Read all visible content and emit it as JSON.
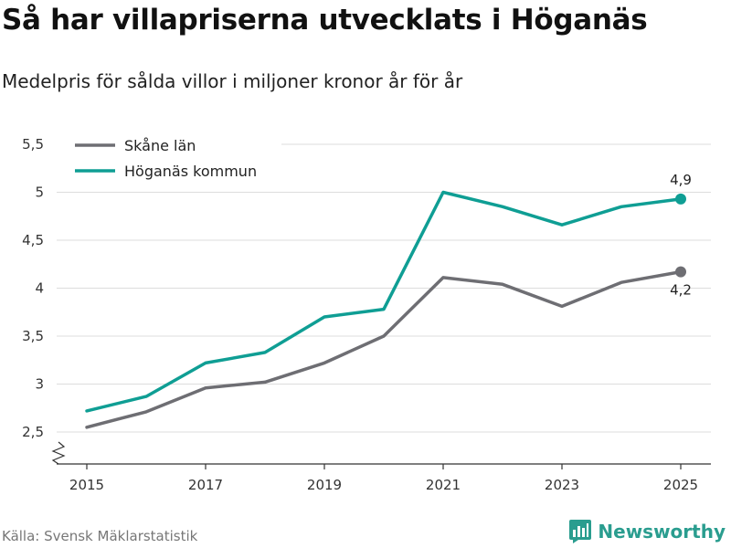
{
  "title": "Så har villapriserna utvecklats i Höganäs",
  "subtitle": "Medelpris för sålda villor i miljoner kronor år för år",
  "source": "Källa: Svensk Mäklarstatistik",
  "brand": "Newsworthy",
  "chart_data": {
    "type": "line",
    "title": "Så har villapriserna utvecklats i Höganäs",
    "xlabel": "",
    "ylabel": "",
    "x": [
      2015,
      2016,
      2017,
      2018,
      2019,
      2020,
      2021,
      2022,
      2023,
      2024,
      2025
    ],
    "x_ticks": [
      "2015",
      "2017",
      "2019",
      "2021",
      "2023",
      "2025"
    ],
    "y_ticks": [
      "2,5",
      "3",
      "3,5",
      "4",
      "4,5",
      "5",
      "5,5"
    ],
    "ylim": [
      2.2,
      5.5
    ],
    "legend_position": "top-left",
    "series": [
      {
        "name": "Skåne län",
        "color": "#6e6e73",
        "values": [
          2.55,
          2.71,
          2.96,
          3.02,
          3.22,
          3.5,
          4.11,
          4.04,
          3.81,
          4.06,
          4.17
        ],
        "end_label": "4,2"
      },
      {
        "name": "Höganäs kommun",
        "color": "#0f9e94",
        "values": [
          2.72,
          2.87,
          3.22,
          3.33,
          3.7,
          3.78,
          5.0,
          4.85,
          4.66,
          4.85,
          4.93
        ],
        "end_label": "4,9"
      }
    ]
  }
}
